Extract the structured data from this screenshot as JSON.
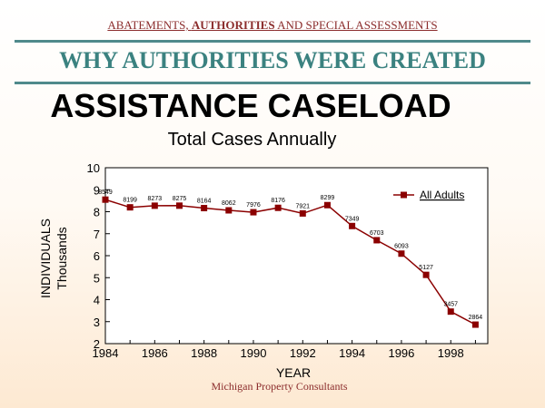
{
  "header": {
    "part1": "ABATEMENTS, ",
    "part2": "AUTHORITIES",
    "part3": " AND SPECIAL ASSESSMENTS"
  },
  "section_title": "WHY AUTHORITIES WERE CREATED",
  "footer": "Michigan Property Consultants",
  "colors": {
    "series": "#8b0000",
    "rule": "#4f8a8b",
    "section": "#3b8280",
    "header": "#8b2c2c"
  },
  "chart_data": {
    "type": "line",
    "title": "ASSISTANCE CASELOAD",
    "subtitle": "Total Cases Annually",
    "xlabel": "YEAR",
    "ylabel": [
      "INDIVIDUALS",
      "Thousands"
    ],
    "x": [
      1984,
      1985,
      1986,
      1987,
      1988,
      1989,
      1990,
      1991,
      1992,
      1993,
      1994,
      1995,
      1996,
      1997,
      1998,
      1999
    ],
    "xticks": [
      1984,
      1986,
      1988,
      1990,
      1992,
      1994,
      1996,
      1998
    ],
    "xlim": [
      1984,
      1999.5
    ],
    "yticks": [
      2,
      3,
      4,
      5,
      6,
      7,
      8,
      9,
      10
    ],
    "ylim": [
      2,
      10
    ],
    "grid": false,
    "legend_position": "top-right",
    "series": [
      {
        "name": "All Adults",
        "values": [
          8.549,
          8.199,
          8.273,
          8.275,
          8.164,
          8.062,
          7.976,
          8.176,
          7.921,
          8.299,
          7.349,
          6.703,
          6.093,
          5.127,
          3.457,
          2.864
        ],
        "labels": [
          "8549",
          "8199",
          "8273",
          "8275",
          "8164",
          "8062",
          "7976",
          "8176",
          "7921",
          "8299",
          "7349",
          "6703",
          "6093",
          "5127",
          "3457",
          "2864"
        ]
      }
    ]
  }
}
